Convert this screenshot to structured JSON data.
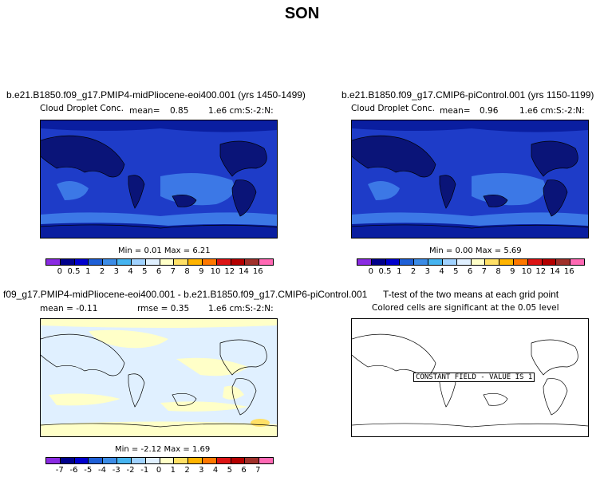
{
  "title": "SON",
  "panels": {
    "top_left": {
      "title": "b.e21.B1850.f09_g17.PMIP4-midPliocene-eoi400.001 (yrs 1450-1499)",
      "variable": "Cloud Droplet Conc.",
      "stat_label": "mean=",
      "stat_value": "0.85",
      "units": "1.e6 cm:S:-2:N:",
      "minmax": "Min =   0.01  Max =    6.21"
    },
    "top_right": {
      "title": "b.e21.B1850.f09_g17.CMIP6-piControl.001 (yrs 1150-1199)",
      "variable": "Cloud Droplet Conc.",
      "stat_label": "mean=",
      "stat_value": "0.96",
      "units": "1.e6 cm:S:-2:N:",
      "minmax": "Min =   0.00  Max =    5.69"
    },
    "bottom_left": {
      "title": "f09_g17.PMIP4-midPliocene-eoi400.001 - b.e21.B1850.f09_g17.CMIP6-piControl.001",
      "mean_text": "mean =   -0.11",
      "rmse_text": "rmse =    0.35",
      "units": "1.e6 cm:S:-2:N:",
      "minmax": "Min =   -2.12  Max =    1.69"
    },
    "bottom_right": {
      "title": "T-test of the two means at each grid point",
      "subtitle": "Colored cells are significant at the 0.05 level",
      "constant_label": "CONSTANT FIELD - VALUE IS 1"
    }
  },
  "colorbar_top": {
    "labels": [
      "0",
      "0.5",
      "1",
      "2",
      "3",
      "4",
      "5",
      "6",
      "7",
      "8",
      "9",
      "10",
      "12",
      "14",
      "16"
    ],
    "colors": [
      "#8a2be2",
      "#00008b",
      "#0000cd",
      "#1e5fd6",
      "#3c8ce6",
      "#46b4f0",
      "#a0d2ff",
      "#e0f0ff",
      "#ffffc8",
      "#ffe066",
      "#ffb400",
      "#ff7800",
      "#dc1414",
      "#b40000",
      "#a0302a",
      "#ff69b4"
    ]
  },
  "colorbar_diff": {
    "labels": [
      "-7",
      "-6",
      "-5",
      "-4",
      "-3",
      "-2",
      "-1",
      "0",
      "1",
      "2",
      "3",
      "4",
      "5",
      "6",
      "7"
    ],
    "colors": [
      "#8a2be2",
      "#00008b",
      "#0000cd",
      "#1e5fd6",
      "#3c8ce6",
      "#46b4f0",
      "#a0d2ff",
      "#e0f0ff",
      "#ffffc8",
      "#ffe066",
      "#ffb400",
      "#ff7800",
      "#dc1414",
      "#b40000",
      "#a0302a",
      "#ff69b4"
    ]
  }
}
